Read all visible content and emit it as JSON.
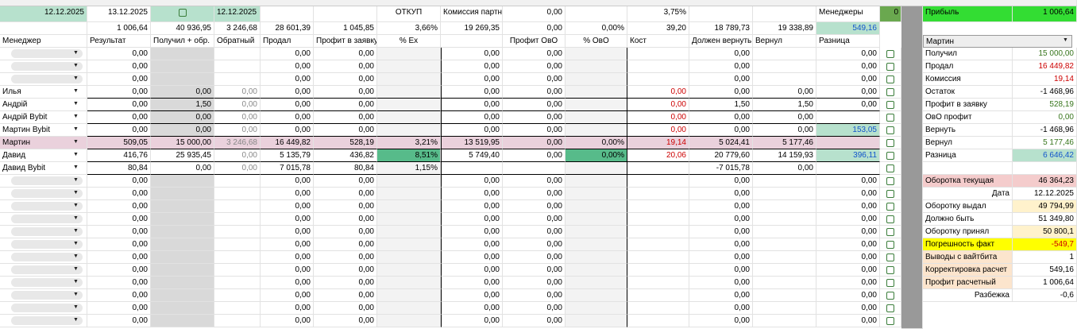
{
  "top": {
    "date1": "12.12.2025",
    "date2": "13.12.2025",
    "date3": "12.12.2025",
    "otkup": "ОТКУП",
    "commission_label": "Комиссия партн",
    "commission_value": "0,00",
    "percent": "3,75%",
    "managers_label": "Менеджеры",
    "managers_count": "0",
    "profit_label": "Прибыль",
    "profit_value": "1 006,64"
  },
  "totals": [
    "1 006,64",
    "40 936,95",
    "3 246,68",
    "28 601,39",
    "1 045,85",
    "3,66%",
    "19 269,35",
    "0,00",
    "0,00%",
    "39,20",
    "18 789,73",
    "19 338,89",
    "549,16"
  ],
  "headers": [
    "Менеджер",
    "Результат",
    "Получил + обр.",
    "Обратный",
    "Продал",
    "Профит в заявку",
    "% Ex",
    null,
    "Профит ОвО",
    "% ОвО",
    "Кост",
    "Должен вернуть",
    "Вернул",
    "Разница"
  ],
  "rows": [
    {
      "manager": null,
      "cells": [
        "0,00",
        null,
        null,
        "0,00",
        "0,00",
        null,
        "0,00",
        "0,00",
        null,
        null,
        "0,00",
        null,
        "0,00"
      ]
    },
    {
      "manager": null,
      "cells": [
        "0,00",
        null,
        null,
        "0,00",
        "0,00",
        null,
        "0,00",
        "0,00",
        null,
        null,
        "0,00",
        null,
        "0,00"
      ]
    },
    {
      "manager": null,
      "cells": [
        "0,00",
        null,
        null,
        "0,00",
        "0,00",
        null,
        "0,00",
        "0,00",
        null,
        null,
        "0,00",
        null,
        "0,00"
      ]
    },
    {
      "manager": "Илья",
      "cells": [
        "0,00",
        "0,00",
        "0,00",
        "0,00",
        "0,00",
        null,
        "0,00",
        "0,00",
        null,
        "0,00",
        "0,00",
        "0,00",
        "0,00"
      ]
    },
    {
      "manager": "Андрій",
      "cells": [
        "0,00",
        "1,50",
        "0,00",
        "0,00",
        "0,00",
        null,
        "0,00",
        "0,00",
        null,
        "0,00",
        "1,50",
        "1,50",
        "0,00"
      ]
    },
    {
      "manager": "Андрій Bybit",
      "cells": [
        "0,00",
        "0,00",
        "0,00",
        "0,00",
        "0,00",
        null,
        "0,00",
        "0,00",
        null,
        "0,00",
        "0,00",
        "0,00",
        null
      ]
    },
    {
      "manager": "Мартин Bybit",
      "cells": [
        "0,00",
        "0,00",
        "0,00",
        "0,00",
        "0,00",
        null,
        "0,00",
        "0,00",
        null,
        "0,00",
        "0,00",
        "0,00",
        "153,05"
      ]
    },
    {
      "manager": "Мартин",
      "cells": [
        "509,05",
        "15 000,00",
        "3 246,68",
        "16 449,82",
        "528,19",
        "3,21%",
        "13 519,95",
        "0,00",
        "0,00%",
        "19,14",
        "5 024,41",
        "5 177,46",
        null
      ]
    },
    {
      "manager": "Давид",
      "cells": [
        "416,76",
        "25 935,45",
        "0,00",
        "5 135,79",
        "436,82",
        "8,51%",
        "5 749,40",
        "0,00",
        "0,00%",
        "20,06",
        "20 779,60",
        "14 159,93",
        "396,11"
      ]
    },
    {
      "manager": "Давид Bybit",
      "cells": [
        "80,84",
        "0,00",
        "0,00",
        "7 015,78",
        "80,84",
        "1,15%",
        null,
        null,
        null,
        null,
        "-7 015,78",
        "0,00",
        null
      ]
    },
    {
      "manager": null,
      "cells": [
        "0,00",
        null,
        null,
        "0,00",
        "0,00",
        null,
        "0,00",
        "0,00",
        null,
        null,
        "0,00",
        null,
        "0,00"
      ]
    },
    {
      "manager": null,
      "cells": [
        "0,00",
        null,
        null,
        "0,00",
        "0,00",
        null,
        "0,00",
        "0,00",
        null,
        null,
        "0,00",
        null,
        "0,00"
      ]
    },
    {
      "manager": null,
      "cells": [
        "0,00",
        null,
        null,
        "0,00",
        "0,00",
        null,
        "0,00",
        "0,00",
        null,
        null,
        "0,00",
        null,
        "0,00"
      ]
    },
    {
      "manager": null,
      "cells": [
        "0,00",
        null,
        null,
        "0,00",
        "0,00",
        null,
        "0,00",
        "0,00",
        null,
        null,
        "0,00",
        null,
        "0,00"
      ]
    },
    {
      "manager": null,
      "cells": [
        "0,00",
        null,
        null,
        "0,00",
        "0,00",
        null,
        "0,00",
        "0,00",
        null,
        null,
        "0,00",
        null,
        "0,00"
      ]
    },
    {
      "manager": null,
      "cells": [
        "0,00",
        null,
        null,
        "0,00",
        "0,00",
        null,
        "0,00",
        "0,00",
        null,
        null,
        "0,00",
        null,
        "0,00"
      ]
    },
    {
      "manager": null,
      "cells": [
        "0,00",
        null,
        null,
        "0,00",
        "0,00",
        null,
        "0,00",
        "0,00",
        null,
        null,
        "0,00",
        null,
        "0,00"
      ]
    },
    {
      "manager": null,
      "cells": [
        "0,00",
        null,
        null,
        "0,00",
        "0,00",
        null,
        "0,00",
        "0,00",
        null,
        null,
        "0,00",
        null,
        "0,00"
      ]
    },
    {
      "manager": null,
      "cells": [
        "0,00",
        null,
        null,
        "0,00",
        "0,00",
        null,
        "0,00",
        "0,00",
        null,
        null,
        "0,00",
        null,
        "0,00"
      ]
    },
    {
      "manager": null,
      "cells": [
        "0,00",
        null,
        null,
        "0,00",
        "0,00",
        null,
        "0,00",
        "0,00",
        null,
        null,
        "0,00",
        null,
        "0,00"
      ]
    },
    {
      "manager": null,
      "cells": [
        "0,00",
        null,
        null,
        "0,00",
        "0,00",
        null,
        "0,00",
        "0,00",
        null,
        null,
        "0,00",
        null,
        "0,00"
      ]
    },
    {
      "manager": null,
      "cells": [
        "0,00",
        null,
        null,
        "0,00",
        "0,00",
        null,
        "0,00",
        "0,00",
        null,
        null,
        "0,00",
        null,
        "0,00"
      ]
    }
  ],
  "summary": {
    "selected": "Мартин",
    "items": [
      {
        "label": "Получил",
        "value": "15 000,00"
      },
      {
        "label": "Продал",
        "value": "16 449,82"
      },
      {
        "label": "Комиссия",
        "value": "19,14"
      },
      {
        "label": "Остаток",
        "value": "-1 468,96"
      },
      {
        "label": "Профит в заявку",
        "value": "528,19"
      },
      {
        "label": "ОвО профит",
        "value": "0,00"
      },
      {
        "label": "Вернуть",
        "value": "-1 468,96"
      },
      {
        "label": "Вернул",
        "value": "5 177,46"
      },
      {
        "label": "Разница",
        "value": "6 646,42"
      },
      null,
      {
        "label": "Оборотка текущая",
        "value": "46 364,23"
      },
      {
        "label": "Дата",
        "value": "12.12.2025"
      },
      {
        "label": "Оборотку выдал",
        "value": "49 794,99"
      },
      {
        "label": "Должно быть",
        "value": "51 349,80"
      },
      {
        "label": "Оборотку принял",
        "value": "50 800,1"
      },
      {
        "label": "Погрешность факт",
        "value": "-549,7"
      },
      {
        "label": "Выводы с вайтбита",
        "value": "1"
      },
      {
        "label": "Корректировка расчет",
        "value": "549,16"
      },
      {
        "label": "Профит расчетный",
        "value": "1 006,64"
      },
      {
        "label": "Разбежка",
        "value": "-0,6"
      }
    ]
  }
}
